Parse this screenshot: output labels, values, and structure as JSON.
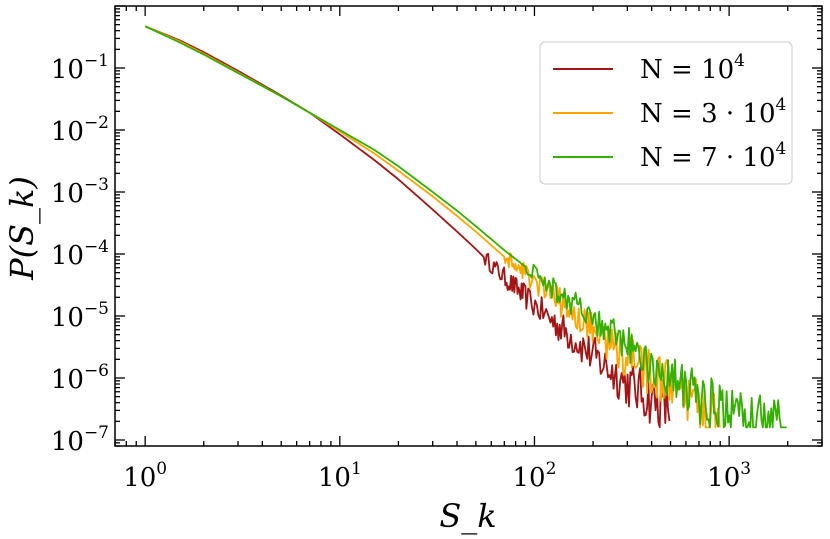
{
  "chart_data": {
    "type": "line",
    "xscale": "log",
    "yscale": "log",
    "xlim": [
      0.7,
      3000
    ],
    "ylim": [
      8e-08,
      1.0
    ],
    "xlabel": "S_k",
    "ylabel": "P(S_k)",
    "x_ticks": [
      {
        "value": 1,
        "base": "10",
        "exp": "0"
      },
      {
        "value": 10,
        "base": "10",
        "exp": "1"
      },
      {
        "value": 100,
        "base": "10",
        "exp": "2"
      },
      {
        "value": 1000,
        "base": "10",
        "exp": "3"
      }
    ],
    "y_ticks": [
      {
        "value": 1e-07,
        "base": "10",
        "exp": "−7"
      },
      {
        "value": 1e-06,
        "base": "10",
        "exp": "−6"
      },
      {
        "value": 1e-05,
        "base": "10",
        "exp": "−5"
      },
      {
        "value": 0.0001,
        "base": "10",
        "exp": "−4"
      },
      {
        "value": 0.001,
        "base": "10",
        "exp": "−3"
      },
      {
        "value": 0.01,
        "base": "10",
        "exp": "−2"
      },
      {
        "value": 0.1,
        "base": "10",
        "exp": "−1"
      }
    ],
    "legend_position": "top-right",
    "grid": false,
    "series": [
      {
        "name": "N = 10^4",
        "label_parts": [
          "N = 10",
          "4"
        ],
        "color": "#a31515",
        "x": [
          1,
          1.5,
          2,
          3,
          5,
          7,
          10,
          15,
          20,
          30,
          40,
          50,
          70,
          100,
          150,
          200,
          300,
          400,
          500
        ],
        "y": [
          0.47,
          0.28,
          0.18,
          0.09,
          0.036,
          0.019,
          0.0085,
          0.0033,
          0.0016,
          0.00052,
          0.00023,
          0.00012,
          4.2e-05,
          1.5e-05,
          5e-06,
          2.3e-06,
          8e-07,
          4.5e-07,
          3e-07
        ],
        "noise_from": 55
      },
      {
        "name": "N = 3 · 10^4",
        "label_parts": [
          "N = 3 · 10",
          "4"
        ],
        "color": "#ffa500",
        "x": [
          1,
          1.5,
          2,
          3,
          5,
          7,
          10,
          15,
          20,
          30,
          40,
          50,
          70,
          100,
          150,
          200,
          300,
          400,
          600,
          900
        ],
        "y": [
          0.47,
          0.27,
          0.17,
          0.085,
          0.035,
          0.019,
          0.0095,
          0.0042,
          0.0022,
          0.00085,
          0.00041,
          0.00023,
          9e-05,
          3.6e-05,
          1.3e-05,
          6e-06,
          2.2e-06,
          1.2e-06,
          4.5e-07,
          2e-07
        ],
        "noise_from": 70
      },
      {
        "name": "N = 7 · 10^4",
        "label_parts": [
          "N = 7 · 10",
          "4"
        ],
        "color": "#33b000",
        "x": [
          1,
          1.5,
          2,
          3,
          5,
          7,
          10,
          15,
          20,
          30,
          40,
          50,
          70,
          100,
          150,
          200,
          300,
          400,
          600,
          900,
          1300,
          2000
        ],
        "y": [
          0.47,
          0.26,
          0.165,
          0.083,
          0.035,
          0.019,
          0.01,
          0.0048,
          0.0026,
          0.001,
          0.0005,
          0.00028,
          0.000115,
          4.8e-05,
          1.8e-05,
          8.5e-06,
          3.3e-06,
          1.7e-06,
          6.5e-07,
          3e-07,
          1.8e-07,
          1.6e-07
        ],
        "noise_from": 90
      }
    ]
  }
}
